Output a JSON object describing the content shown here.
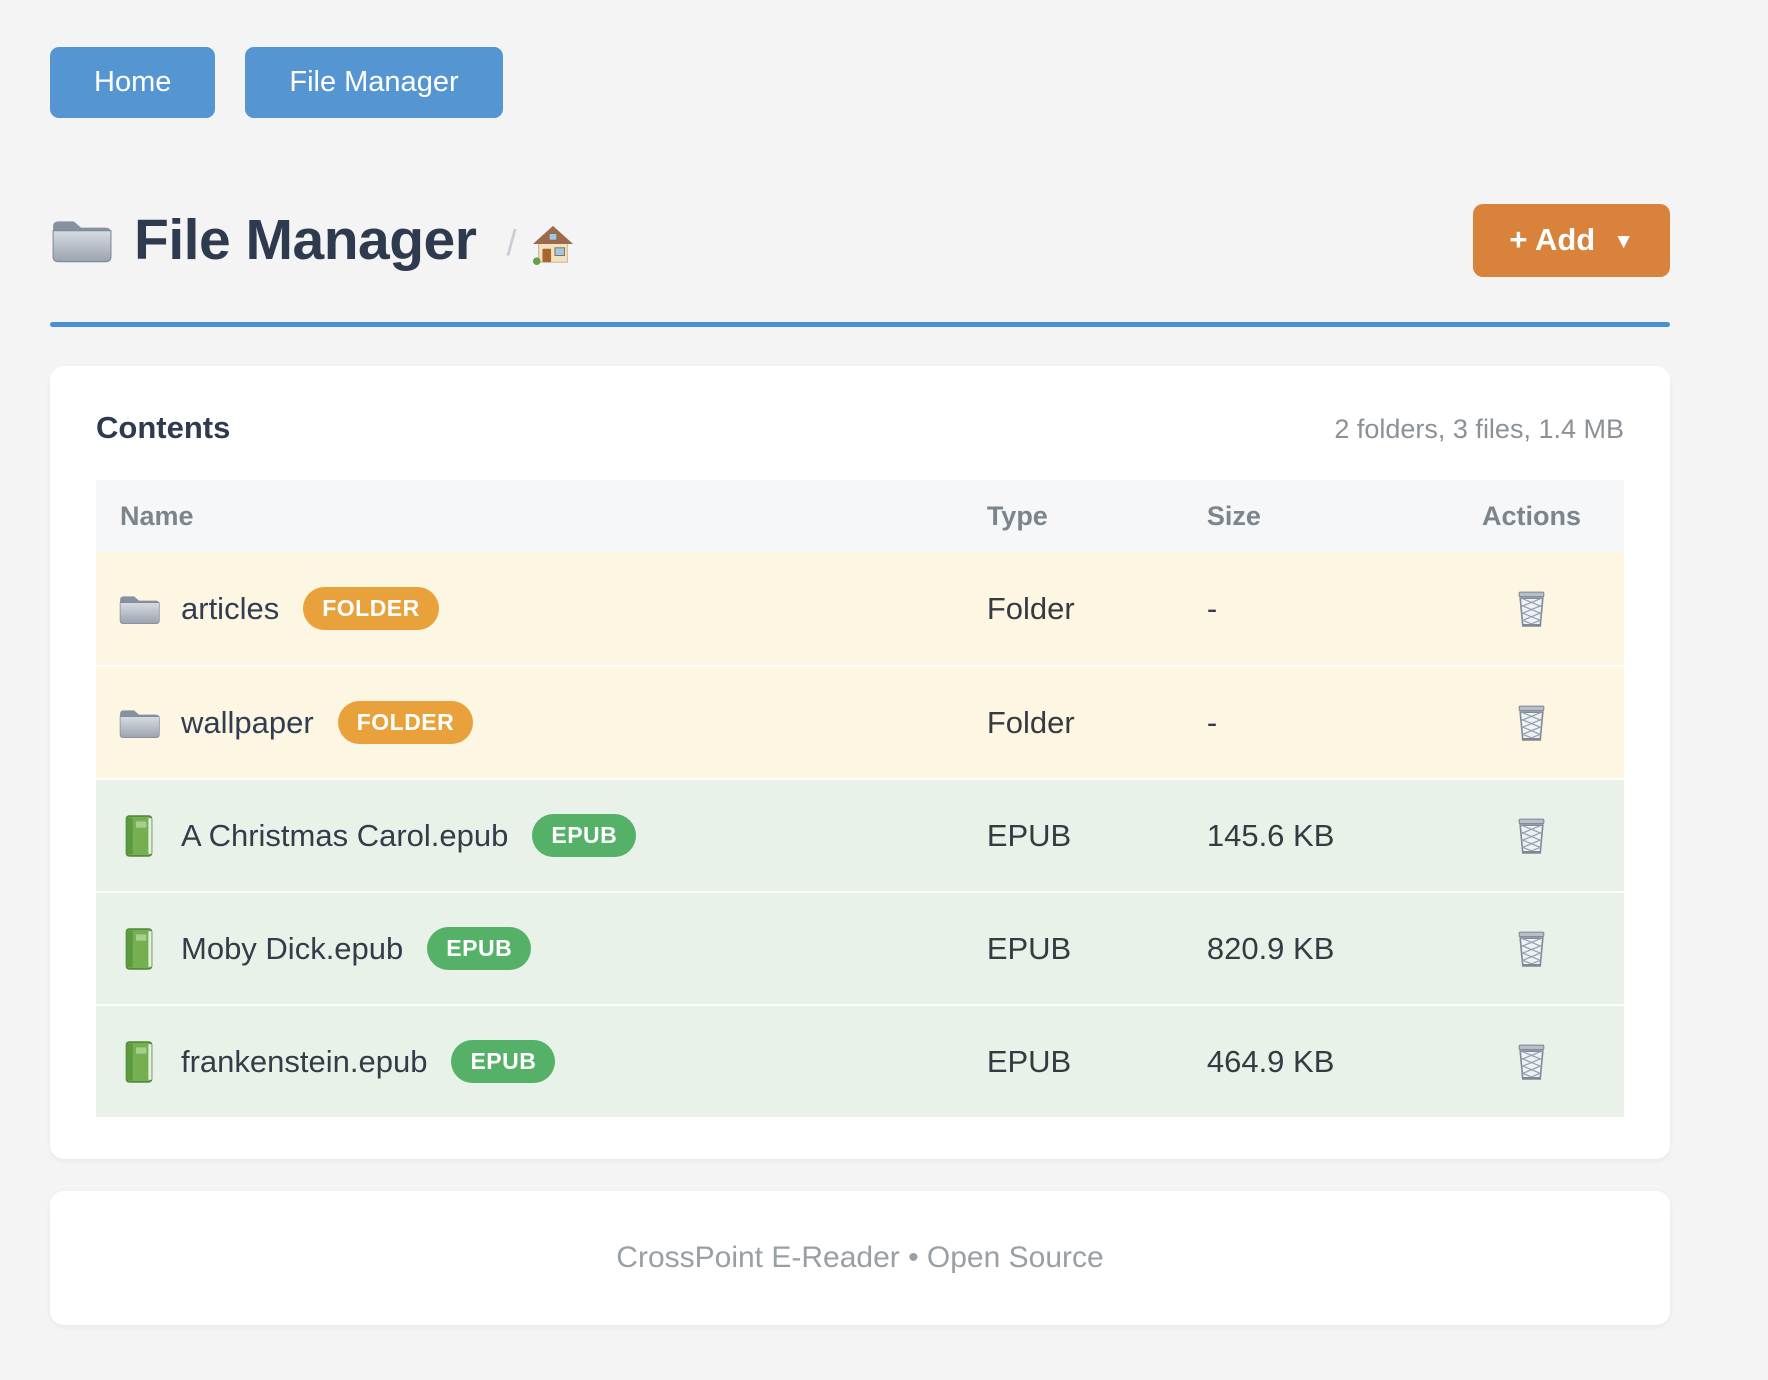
{
  "nav": {
    "buttons": [
      {
        "label": "Home"
      },
      {
        "label": "File Manager"
      }
    ]
  },
  "header": {
    "title": "File Manager",
    "breadcrumb_separator": "/",
    "title_icon": "folder-icon",
    "breadcrumb_icon": "home-icon",
    "add_button": {
      "label": "+ Add",
      "caret": "▼"
    }
  },
  "content_card": {
    "title": "Contents",
    "summary": "2 folders, 3 files, 1.4 MB",
    "table": {
      "columns": [
        "Name",
        "Type",
        "Size",
        "Actions"
      ],
      "action_icon": "trash-icon",
      "rows": [
        {
          "name": "articles",
          "icon": "folder-icon",
          "badge": "FOLDER",
          "kind": "folder",
          "type": "Folder",
          "size": "-"
        },
        {
          "name": "wallpaper",
          "icon": "folder-icon",
          "badge": "FOLDER",
          "kind": "folder",
          "type": "Folder",
          "size": "-"
        },
        {
          "name": "A Christmas Carol.epub",
          "icon": "book-icon",
          "badge": "EPUB",
          "kind": "file",
          "type": "EPUB",
          "size": "145.6 KB"
        },
        {
          "name": "Moby Dick.epub",
          "icon": "book-icon",
          "badge": "EPUB",
          "kind": "file",
          "type": "EPUB",
          "size": "820.9 KB"
        },
        {
          "name": "frankenstein.epub",
          "icon": "book-icon",
          "badge": "EPUB",
          "kind": "file",
          "type": "EPUB",
          "size": "464.9 KB"
        }
      ]
    }
  },
  "footer": {
    "text": "CrossPoint E-Reader • Open Source"
  },
  "colors": {
    "nav_button": "#5596d2",
    "accent_rule": "#4a8fd2",
    "add_button": "#d8823c",
    "badge_folder": "#e9a23b",
    "badge_epub": "#55b168",
    "row_folder_bg": "#fdf6e2",
    "row_file_bg": "#e8f2e8"
  }
}
